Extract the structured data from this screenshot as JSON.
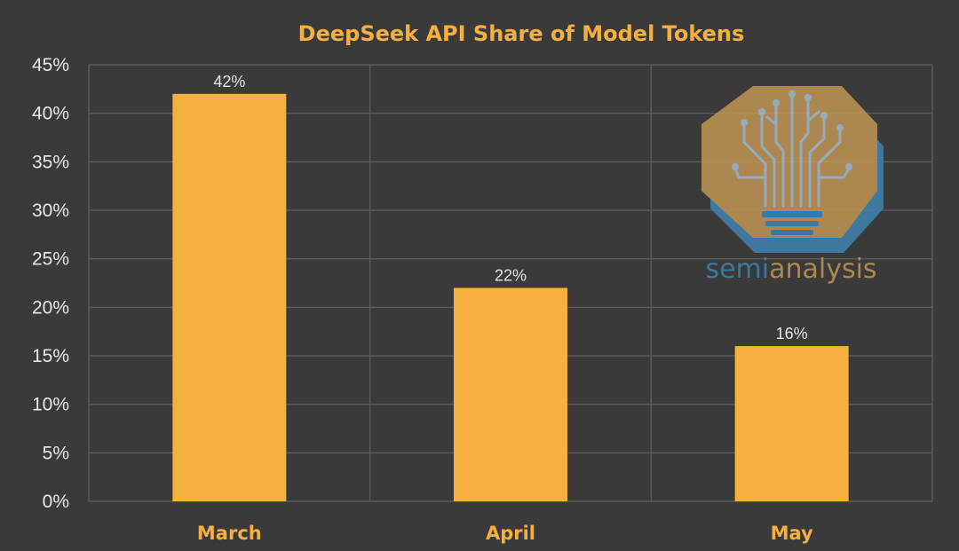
{
  "colors": {
    "background": "#3a3a3a",
    "bar": "#f6b042",
    "title": "#f6b042",
    "category_label": "#f6b042",
    "grid": "#5a5a5a",
    "tick_label": "#e9e9e9",
    "logo_blue": "#3f86b6",
    "logo_gold": "#c69a55"
  },
  "chart_data": {
    "type": "bar",
    "title": "DeepSeek API Share of Model Tokens",
    "categories": [
      "March",
      "April",
      "May"
    ],
    "values": [
      42,
      22,
      16
    ],
    "data_labels": [
      "42%",
      "22%",
      "16%"
    ],
    "y_ticks": [
      "0%",
      "5%",
      "10%",
      "15%",
      "20%",
      "25%",
      "30%",
      "35%",
      "40%",
      "45%"
    ],
    "ylim": [
      0,
      45
    ],
    "xlabel": "",
    "ylabel": "",
    "grid": true
  },
  "watermark": {
    "icon": "tree-circuit-lightbulb-icon",
    "text_part1": "semi",
    "text_part2": "analysis"
  }
}
